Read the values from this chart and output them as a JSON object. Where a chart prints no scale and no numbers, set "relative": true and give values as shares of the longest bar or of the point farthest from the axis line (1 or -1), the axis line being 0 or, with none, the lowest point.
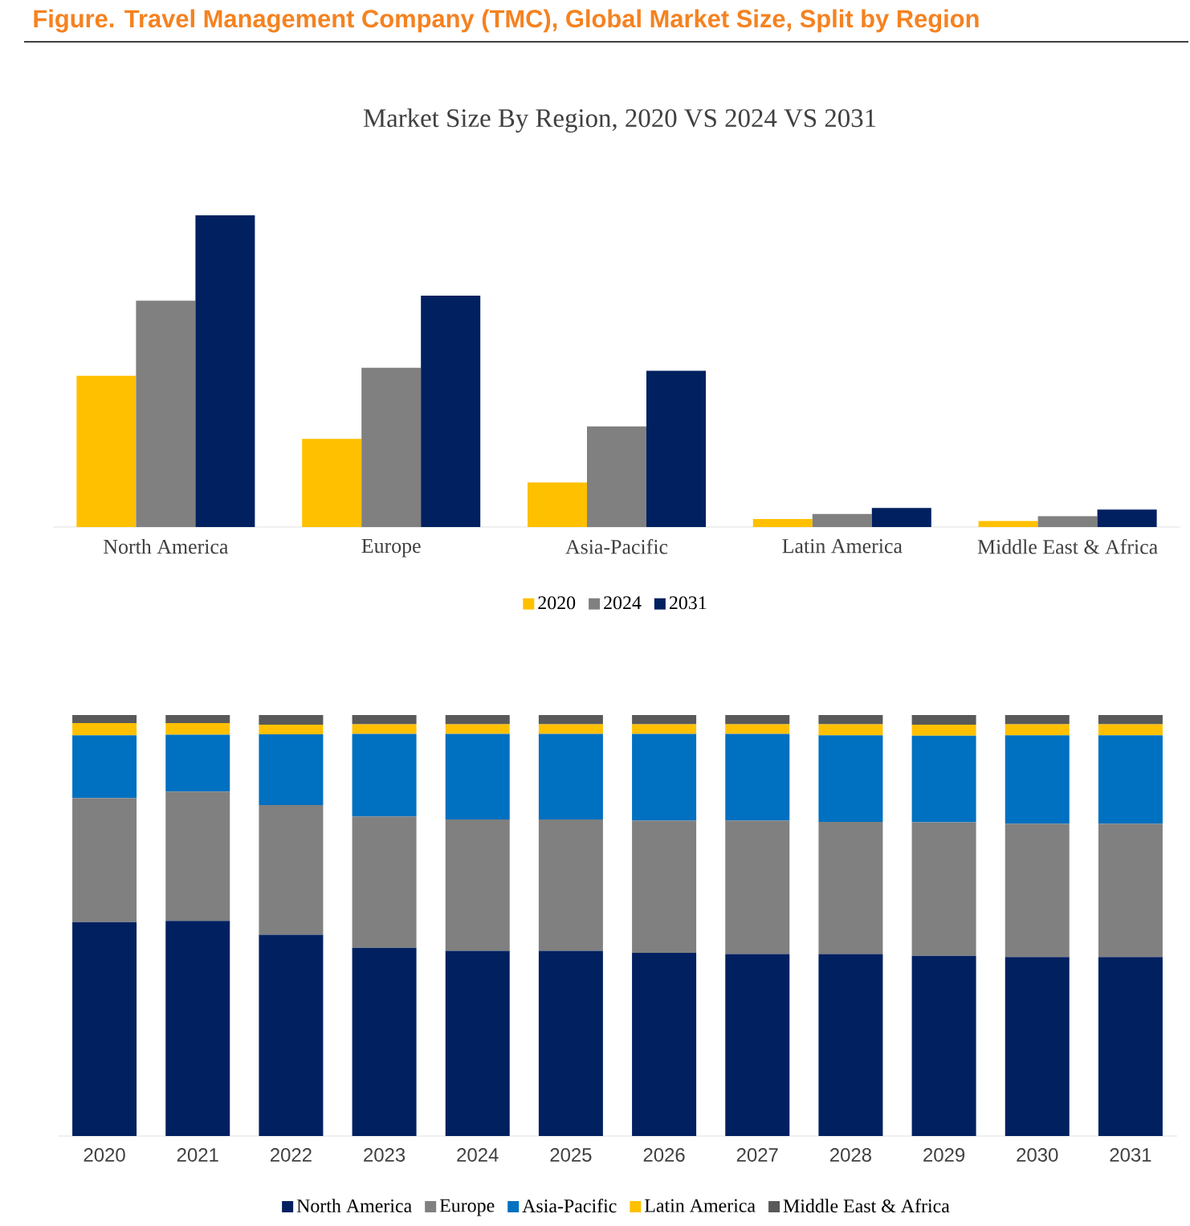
{
  "chart_data": [
    {
      "type": "bar",
      "title": "Market Size By Region, 2020 VS 2024 VS 2031",
      "annotations": [
        "Figure.   Travel Management Company (TMC), Global Market Size, Split by Region"
      ],
      "relative": true,
      "legend": "bottom",
      "categories": [
        "North America",
        "Europe",
        "Asia-Pacific",
        "Latin America",
        "Middle East & Africa"
      ],
      "series": [
        {
          "name": "2020",
          "color": "#ffc000",
          "values": [
            0.485,
            0.283,
            0.143,
            0.026,
            0.019
          ]
        },
        {
          "name": "2024",
          "color": "#808080",
          "values": [
            0.726,
            0.511,
            0.323,
            0.042,
            0.035
          ]
        },
        {
          "name": "2031",
          "color": "#002060",
          "values": [
            1,
            0.742,
            0.501,
            0.061,
            0.056
          ]
        }
      ]
    },
    {
      "type": "bar",
      "stacked": true,
      "relative": true,
      "legend": "bottom",
      "categories": [
        "2020",
        "2021",
        "2022",
        "2023",
        "2024",
        "2025",
        "2026",
        "2027",
        "2028",
        "2029",
        "2030",
        "2031"
      ],
      "series": [
        {
          "name": "North America",
          "color": "#002060",
          "values": [
            0.508,
            0.511,
            0.478,
            0.447,
            0.44,
            0.44,
            0.435,
            0.432,
            0.432,
            0.428,
            0.425,
            0.425
          ]
        },
        {
          "name": "Europe",
          "color": "#808080",
          "values": [
            0.295,
            0.307,
            0.308,
            0.312,
            0.312,
            0.312,
            0.314,
            0.317,
            0.314,
            0.317,
            0.317,
            0.317
          ]
        },
        {
          "name": "Asia-Pacific",
          "color": "#0070c0",
          "values": [
            0.149,
            0.135,
            0.168,
            0.196,
            0.203,
            0.203,
            0.206,
            0.206,
            0.206,
            0.206,
            0.21,
            0.21
          ]
        },
        {
          "name": "Latin America",
          "color": "#ffc000",
          "values": [
            0.029,
            0.028,
            0.023,
            0.023,
            0.023,
            0.023,
            0.023,
            0.023,
            0.026,
            0.026,
            0.026,
            0.026
          ]
        },
        {
          "name": "Middle East & Africa",
          "color": "#595959",
          "values": [
            0.019,
            0.019,
            0.023,
            0.022,
            0.022,
            0.022,
            0.022,
            0.022,
            0.022,
            0.023,
            0.022,
            0.022
          ]
        }
      ]
    }
  ]
}
